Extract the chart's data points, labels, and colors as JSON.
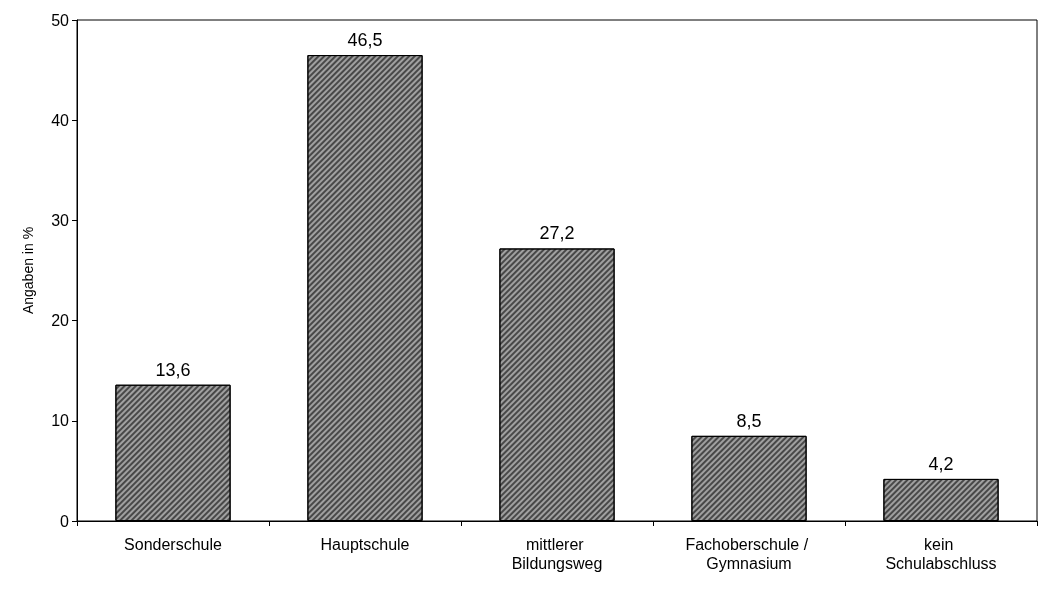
{
  "chart_data": {
    "type": "bar",
    "ylabel": "Angaben in %",
    "categories": [
      "Sonderschule",
      "Hauptschule",
      "mittlerer Bildungsweg",
      "Fachoberschule / Gymnasium",
      "kein Schulabschluss"
    ],
    "values": [
      13.6,
      46.5,
      27.2,
      8.5,
      4.2
    ],
    "value_labels": [
      "13,6",
      "46,5",
      "27,2",
      "8,5",
      "4,2"
    ],
    "color": "#a0a0a0",
    "ylim": [
      0,
      50
    ],
    "yticks": [
      0,
      10,
      20,
      30,
      40,
      50
    ],
    "grid": false
  }
}
